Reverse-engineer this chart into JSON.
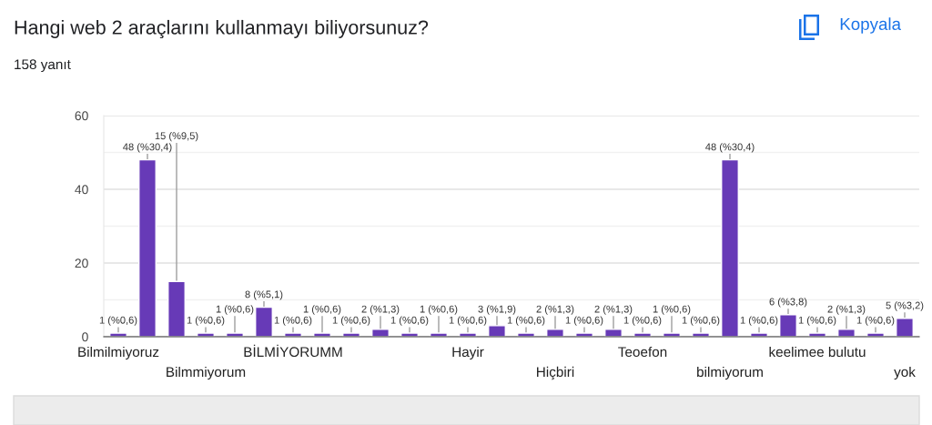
{
  "chart_data": {
    "type": "bar",
    "title": "Hangi web 2 araçlarını kullanmayı biliyorsunuz?",
    "subtitle": "158 yanıt",
    "annotations": [
      "Kopyala"
    ],
    "categories": [
      "Bilmilmiyoruz",
      null,
      null,
      "Bilmmiyorum",
      null,
      null,
      "BİLMİYORUMM",
      null,
      null,
      null,
      null,
      null,
      "Hayir",
      null,
      null,
      "Hiçbiri",
      null,
      null,
      "Teoefon",
      null,
      null,
      "bilmiyorum",
      null,
      null,
      "keelimee bulutu",
      null,
      null,
      "yok"
    ],
    "values": [
      1,
      48,
      15,
      1,
      1,
      8,
      1,
      1,
      1,
      2,
      1,
      1,
      1,
      3,
      1,
      2,
      1,
      2,
      1,
      1,
      1,
      48,
      1,
      6,
      1,
      2,
      1,
      5
    ],
    "value_labels": [
      "1 (%0,6)",
      "48 (%30,4)",
      "15 (%9,5)",
      "1 (%0,6)",
      "1 (%0,6)",
      "8 (%5,1)",
      "1 (%0,6)",
      "1 (%0,6)",
      "1 (%0,6)",
      "2 (%1,3)",
      "1 (%0,6)",
      "1 (%0,6)",
      "1 (%0,6)",
      "3 (%1,9)",
      "1 (%0,6)",
      "2 (%1,3)",
      "1 (%0,6)",
      "2 (%1,3)",
      "1 (%0,6)",
      "1 (%0,6)",
      "1 (%0,6)",
      "48 (%30,4)",
      "1 (%0,6)",
      "6 (%3,8)",
      "1 (%0,6)",
      "2 (%1,3)",
      "1 (%0,6)",
      "5 (%3,2)"
    ],
    "color": "#673ab7",
    "ylim": [
      0,
      60
    ],
    "yticks": [
      0,
      {
        "value": 10,
        "label": null
      },
      20,
      {
        "value": 30,
        "label": null
      },
      40,
      {
        "value": 50,
        "label": null
      },
      60
    ],
    "grid": "y"
  }
}
